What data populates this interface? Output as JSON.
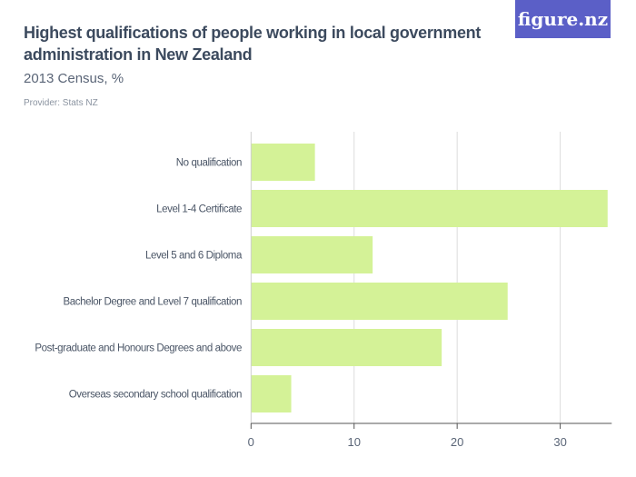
{
  "header": {
    "title": "Highest qualifications of people working in local government administration in New Zealand",
    "subtitle": "2013 Census, %",
    "provider": "Provider: Stats NZ",
    "logo": "figure.nz"
  },
  "chart_data": {
    "type": "bar",
    "orientation": "horizontal",
    "categories": [
      "No qualification",
      "Level 1-4 Certificate",
      "Level 5 and 6 Diploma",
      "Bachelor Degree and Level 7 qualification",
      "Post-graduate and Honours Degrees and above",
      "Overseas secondary school qualification"
    ],
    "values": [
      6.2,
      34.6,
      11.8,
      24.9,
      18.5,
      3.9
    ],
    "xlim": [
      0,
      35
    ],
    "xticks": [
      "0",
      "10",
      "20",
      "30"
    ],
    "grid": true,
    "bar_color": "#d4f297",
    "title": "Highest qualifications of people working in local government administration in New Zealand",
    "xlabel": "",
    "ylabel": ""
  }
}
